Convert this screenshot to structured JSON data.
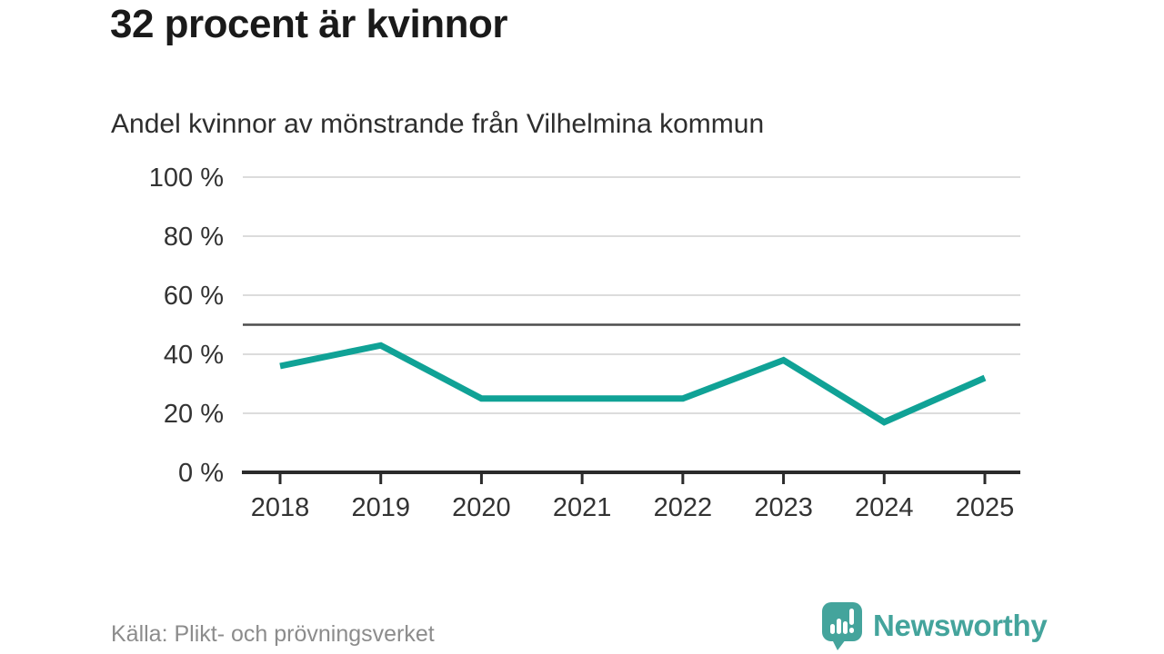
{
  "header": {
    "title": "32 procent är kvinnor",
    "subtitle": "Andel kvinnor av mönstrande från Vilhelmina kommun"
  },
  "chart_data": {
    "type": "line",
    "title": "32 procent är kvinnor",
    "subtitle": "Andel kvinnor av mönstrande från Vilhelmina kommun",
    "categories": [
      "2018",
      "2019",
      "2020",
      "2021",
      "2022",
      "2023",
      "2024",
      "2025"
    ],
    "series": [
      {
        "name": "Andel kvinnor av mönstrande",
        "values": [
          36,
          43,
          25,
          25,
          25,
          38,
          17,
          32
        ]
      }
    ],
    "xlabel": "",
    "ylabel": "",
    "ylim": [
      0,
      100
    ],
    "yticks": [
      0,
      20,
      40,
      60,
      80,
      100
    ],
    "ytick_suffix": " %",
    "reference_line": 50,
    "grid": true,
    "legend": "none",
    "colors": {
      "line": "#10a296",
      "grid": "#dcdcdc",
      "axis": "#2b2b2b",
      "reference": "#4d4d4d",
      "tick_label": "#333333"
    }
  },
  "footer": {
    "source": "Källa: Plikt- och prövningsverket",
    "logo_text": "Newsworthy",
    "logo_color": "#44a49c"
  }
}
